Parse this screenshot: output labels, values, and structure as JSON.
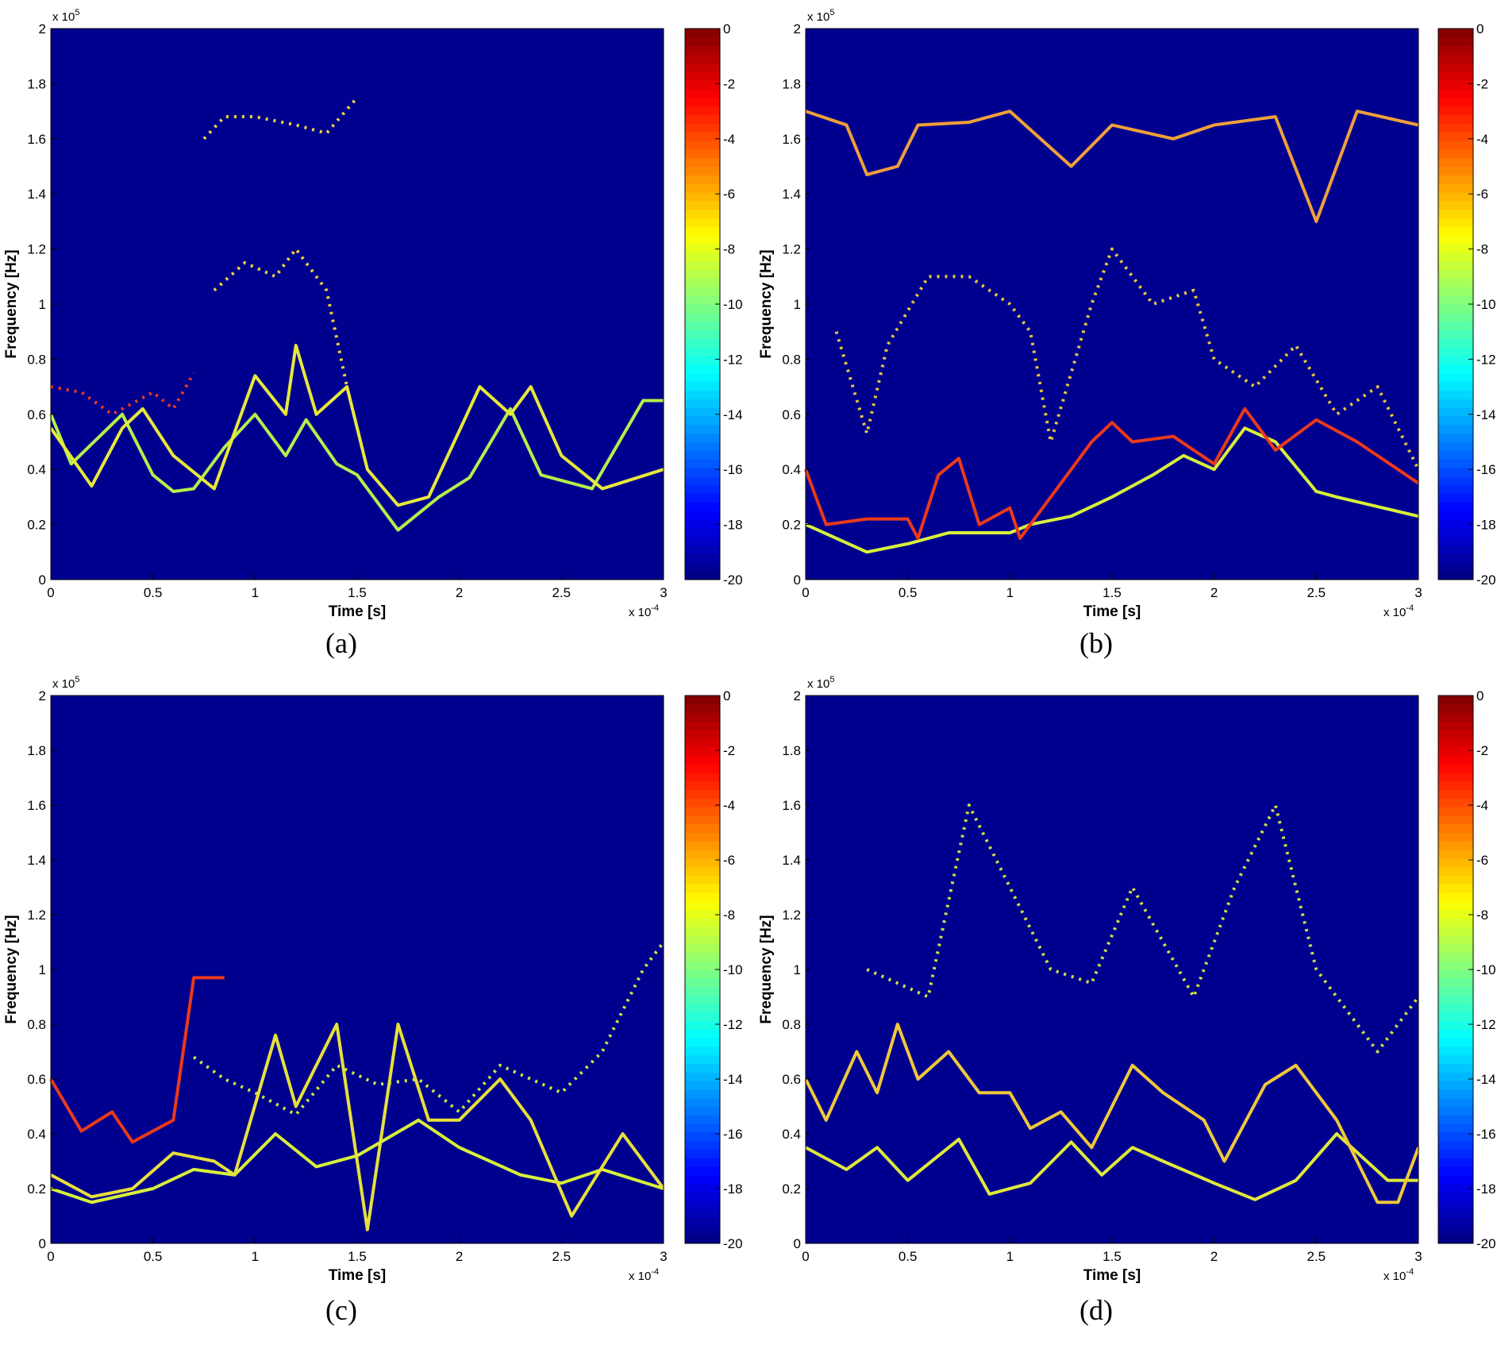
{
  "chart_data": [
    {
      "type": "line",
      "panel_label": "(a)",
      "xlabel": "Time [s]",
      "ylabel": "Frequency [Hz]",
      "x_scale": {
        "text": "x 10",
        "exponent": "-4"
      },
      "y_scale": {
        "text": "x 10",
        "exponent": "5"
      },
      "xlim": [
        0,
        3
      ],
      "xticks": [
        0,
        0.5,
        1,
        1.5,
        2,
        2.5,
        3
      ],
      "ylim": [
        0,
        2
      ],
      "yticks": [
        0,
        0.2,
        0.4,
        0.6,
        0.8,
        1,
        1.2,
        1.4,
        1.6,
        1.8,
        2
      ],
      "background": "#00008f",
      "colorbar": {
        "clim": [
          -20,
          0
        ],
        "ticks": [
          0,
          -2,
          -4,
          -6,
          -8,
          -10,
          -12,
          -14,
          -16,
          -18,
          -20
        ]
      },
      "series": [
        {
          "color": "#b4f04a",
          "linestyle": "solid",
          "x": [
            0,
            0.1,
            0.35,
            0.5,
            0.6,
            0.7,
            0.85,
            1,
            1.15,
            1.25,
            1.4,
            1.5,
            1.7,
            1.9,
            2.05,
            2.25,
            2.4,
            2.65,
            2.9,
            3
          ],
          "values": [
            0.6,
            0.42,
            0.6,
            0.38,
            0.32,
            0.33,
            0.48,
            0.6,
            0.45,
            0.58,
            0.42,
            0.38,
            0.18,
            0.3,
            0.37,
            0.62,
            0.38,
            0.33,
            0.65,
            0.65
          ]
        },
        {
          "color": "#e8e83a",
          "linestyle": "solid",
          "x": [
            0,
            0.2,
            0.35,
            0.45,
            0.6,
            0.8,
            1,
            1.15,
            1.2,
            1.3,
            1.45,
            1.55,
            1.7,
            1.85,
            2.1,
            2.25,
            2.35,
            2.5,
            2.7,
            3
          ],
          "values": [
            0.55,
            0.34,
            0.55,
            0.62,
            0.45,
            0.33,
            0.74,
            0.6,
            0.85,
            0.6,
            0.7,
            0.4,
            0.27,
            0.3,
            0.7,
            0.6,
            0.7,
            0.45,
            0.33,
            0.4
          ]
        },
        {
          "color": "#f03a1a",
          "linestyle": "dotted",
          "x": [
            0,
            0.15,
            0.3,
            0.5,
            0.6,
            0.7
          ],
          "values": [
            0.7,
            0.68,
            0.6,
            0.68,
            0.62,
            0.75
          ]
        },
        {
          "color": "#f0d23a",
          "linestyle": "dotted",
          "x": [
            0.8,
            0.95,
            1.1,
            1.2,
            1.35,
            1.45
          ],
          "values": [
            1.05,
            1.15,
            1.1,
            1.2,
            1.05,
            0.7
          ]
        },
        {
          "color": "#f0d23a",
          "linestyle": "dotted",
          "x": [
            0.75,
            0.85,
            1,
            1.2,
            1.35,
            1.5
          ],
          "values": [
            1.6,
            1.68,
            1.68,
            1.65,
            1.62,
            1.75
          ]
        }
      ]
    },
    {
      "type": "line",
      "panel_label": "(b)",
      "xlabel": "Time [s]",
      "ylabel": "Frequency [Hz]",
      "x_scale": {
        "text": "x 10",
        "exponent": "-4"
      },
      "y_scale": {
        "text": "x 10",
        "exponent": "5"
      },
      "xlim": [
        0,
        3
      ],
      "xticks": [
        0,
        0.5,
        1,
        1.5,
        2,
        2.5,
        3
      ],
      "ylim": [
        0,
        2
      ],
      "yticks": [
        0,
        0.2,
        0.4,
        0.6,
        0.8,
        1,
        1.2,
        1.4,
        1.6,
        1.8,
        2
      ],
      "background": "#00008f",
      "colorbar": {
        "clim": [
          -20,
          0
        ],
        "ticks": [
          0,
          -2,
          -4,
          -6,
          -8,
          -10,
          -12,
          -14,
          -16,
          -18,
          -20
        ]
      },
      "series": [
        {
          "color": "#d8f03a",
          "linestyle": "solid",
          "x": [
            0,
            0.3,
            0.5,
            0.7,
            1,
            1.1,
            1.3,
            1.5,
            1.7,
            1.85,
            2,
            2.15,
            2.3,
            2.5,
            2.6,
            3
          ],
          "values": [
            0.2,
            0.1,
            0.13,
            0.17,
            0.17,
            0.2,
            0.23,
            0.3,
            0.38,
            0.45,
            0.4,
            0.55,
            0.5,
            0.32,
            0.3,
            0.23
          ]
        },
        {
          "color": "#ea3a1a",
          "linestyle": "solid",
          "x": [
            0,
            0.1,
            0.3,
            0.5,
            0.55,
            0.65,
            0.75,
            0.85,
            1,
            1.05,
            1.2,
            1.4,
            1.5,
            1.6,
            1.8,
            2,
            2.15,
            2.3,
            2.5,
            2.7,
            3
          ],
          "values": [
            0.4,
            0.2,
            0.22,
            0.22,
            0.15,
            0.38,
            0.44,
            0.2,
            0.26,
            0.15,
            0.3,
            0.5,
            0.57,
            0.5,
            0.52,
            0.42,
            0.62,
            0.47,
            0.58,
            0.5,
            0.35
          ]
        },
        {
          "color": "#e8c83a",
          "linestyle": "dotted",
          "x": [
            0.15,
            0.3,
            0.4,
            0.6,
            0.8,
            1,
            1.1,
            1.2,
            1.4,
            1.5,
            1.7,
            1.9,
            2,
            2.2,
            2.4,
            2.6,
            2.8,
            3
          ],
          "values": [
            0.9,
            0.53,
            0.85,
            1.1,
            1.1,
            1,
            0.9,
            0.5,
            1,
            1.2,
            1,
            1.05,
            0.8,
            0.7,
            0.85,
            0.6,
            0.7,
            0.4
          ]
        },
        {
          "color": "#f0a03a",
          "linestyle": "solid",
          "x": [
            0,
            0.2,
            0.3,
            0.45,
            0.55,
            0.8,
            1,
            1.3,
            1.5,
            1.8,
            2,
            2.3,
            2.5,
            2.7,
            3
          ],
          "values": [
            1.7,
            1.65,
            1.47,
            1.5,
            1.65,
            1.66,
            1.7,
            1.5,
            1.65,
            1.6,
            1.65,
            1.68,
            1.3,
            1.7,
            1.65
          ]
        }
      ]
    },
    {
      "type": "line",
      "panel_label": "(c)",
      "xlabel": "Time [s]",
      "ylabel": "Frequency [Hz]",
      "x_scale": {
        "text": "x 10",
        "exponent": "-4"
      },
      "y_scale": {
        "text": "x 10",
        "exponent": "5"
      },
      "xlim": [
        0,
        3
      ],
      "xticks": [
        0,
        0.5,
        1,
        1.5,
        2,
        2.5,
        3
      ],
      "ylim": [
        0,
        2
      ],
      "yticks": [
        0,
        0.2,
        0.4,
        0.6,
        0.8,
        1,
        1.2,
        1.4,
        1.6,
        1.8,
        2
      ],
      "background": "#00008f",
      "colorbar": {
        "clim": [
          -20,
          0
        ],
        "ticks": [
          0,
          -2,
          -4,
          -6,
          -8,
          -10,
          -12,
          -14,
          -16,
          -18,
          -20
        ]
      },
      "series": [
        {
          "color": "#d8f03a",
          "linestyle": "solid",
          "x": [
            0,
            0.2,
            0.5,
            0.7,
            0.9,
            1.1,
            1.3,
            1.5,
            1.8,
            2,
            2.3,
            2.5,
            2.7,
            3
          ],
          "values": [
            0.2,
            0.15,
            0.2,
            0.27,
            0.25,
            0.4,
            0.28,
            0.32,
            0.45,
            0.35,
            0.25,
            0.22,
            0.27,
            0.2
          ]
        },
        {
          "color": "#e8e03a",
          "linestyle": "solid",
          "x": [
            0,
            0.2,
            0.4,
            0.6,
            0.8,
            0.9,
            1.1,
            1.2,
            1.4,
            1.55,
            1.7,
            1.85,
            2,
            2.2,
            2.35,
            2.55,
            2.8,
            3
          ],
          "values": [
            0.25,
            0.17,
            0.2,
            0.33,
            0.3,
            0.25,
            0.76,
            0.5,
            0.8,
            0.05,
            0.8,
            0.45,
            0.45,
            0.6,
            0.45,
            0.1,
            0.4,
            0.2
          ]
        },
        {
          "color": "#ea3a1a",
          "linestyle": "solid",
          "x": [
            0,
            0.15,
            0.3,
            0.4,
            0.6,
            0.7,
            0.85
          ],
          "values": [
            0.6,
            0.41,
            0.48,
            0.37,
            0.45,
            0.97,
            0.97
          ]
        },
        {
          "color": "#c8e840",
          "linestyle": "dotted",
          "x": [
            0.7,
            0.85,
            1,
            1.2,
            1.4,
            1.6,
            1.8,
            2,
            2.2,
            2.5,
            2.7,
            2.9,
            3
          ],
          "values": [
            0.68,
            0.6,
            0.55,
            0.47,
            0.65,
            0.58,
            0.6,
            0.48,
            0.65,
            0.55,
            0.7,
            1,
            1.1
          ]
        }
      ]
    },
    {
      "type": "line",
      "panel_label": "(d)",
      "xlabel": "Time [s]",
      "ylabel": "Frequency [Hz]",
      "x_scale": {
        "text": "x 10",
        "exponent": "-4"
      },
      "y_scale": {
        "text": "x 10",
        "exponent": "5"
      },
      "xlim": [
        0,
        3
      ],
      "xticks": [
        0,
        0.5,
        1,
        1.5,
        2,
        2.5,
        3
      ],
      "ylim": [
        0,
        2
      ],
      "yticks": [
        0,
        0.2,
        0.4,
        0.6,
        0.8,
        1,
        1.2,
        1.4,
        1.6,
        1.8,
        2
      ],
      "background": "#00008f",
      "colorbar": {
        "clim": [
          -20,
          0
        ],
        "ticks": [
          0,
          -2,
          -4,
          -6,
          -8,
          -10,
          -12,
          -14,
          -16,
          -18,
          -20
        ]
      },
      "series": [
        {
          "color": "#e0e83a",
          "linestyle": "solid",
          "x": [
            0,
            0.2,
            0.35,
            0.5,
            0.75,
            0.9,
            1.1,
            1.3,
            1.45,
            1.6,
            1.75,
            2,
            2.2,
            2.4,
            2.6,
            2.85,
            3
          ],
          "values": [
            0.35,
            0.27,
            0.35,
            0.23,
            0.38,
            0.18,
            0.22,
            0.37,
            0.25,
            0.35,
            0.3,
            0.22,
            0.16,
            0.23,
            0.4,
            0.23,
            0.23
          ]
        },
        {
          "color": "#f0c83a",
          "linestyle": "solid",
          "x": [
            0,
            0.1,
            0.25,
            0.35,
            0.45,
            0.55,
            0.7,
            0.85,
            1,
            1.1,
            1.25,
            1.4,
            1.6,
            1.75,
            1.95,
            2.05,
            2.25,
            2.4,
            2.6,
            2.8,
            2.9,
            3
          ],
          "values": [
            0.6,
            0.45,
            0.7,
            0.55,
            0.8,
            0.6,
            0.7,
            0.55,
            0.55,
            0.42,
            0.48,
            0.35,
            0.65,
            0.55,
            0.45,
            0.3,
            0.58,
            0.65,
            0.45,
            0.15,
            0.15,
            0.35
          ]
        },
        {
          "color": "#d0e040",
          "linestyle": "dotted",
          "x": [
            0.3,
            0.6,
            0.8,
            1,
            1.2,
            1.4,
            1.6,
            1.9,
            2.1,
            2.3,
            2.5,
            2.8,
            3
          ],
          "values": [
            1,
            0.9,
            1.6,
            1.3,
            1,
            0.95,
            1.3,
            0.9,
            1.3,
            1.6,
            1,
            0.7,
            0.9
          ]
        }
      ]
    }
  ]
}
